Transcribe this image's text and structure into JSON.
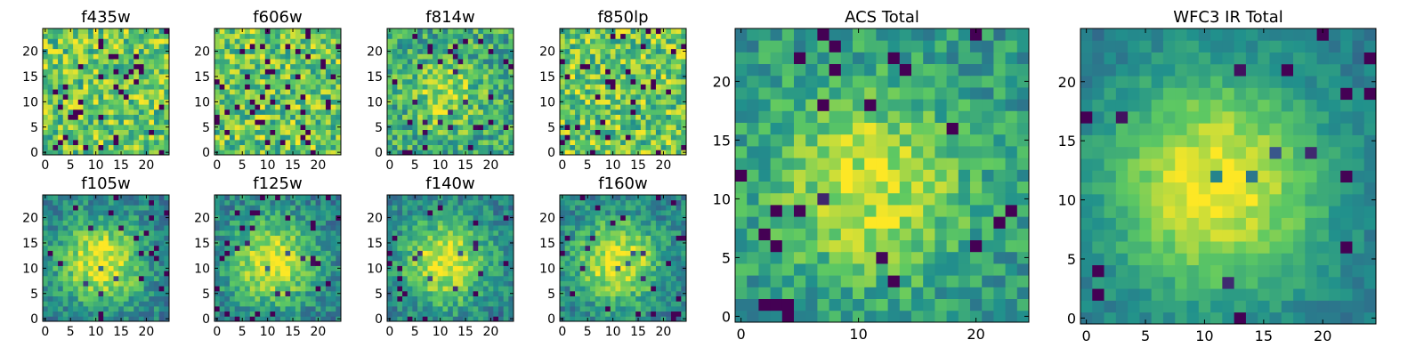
{
  "chart_data": [
    {
      "type": "heatmap",
      "title": "f435w",
      "grid": 25,
      "xticks": [
        0,
        5,
        10,
        15,
        20
      ],
      "yticks": [
        0,
        5,
        10,
        15,
        20
      ],
      "xlim": [
        0,
        25
      ],
      "ylim": [
        0,
        25
      ],
      "pattern": "noise",
      "seed": 11
    },
    {
      "type": "heatmap",
      "title": "f606w",
      "grid": 25,
      "xticks": [
        0,
        5,
        10,
        15,
        20
      ],
      "yticks": [
        0,
        5,
        10,
        15,
        20
      ],
      "xlim": [
        0,
        25
      ],
      "ylim": [
        0,
        25
      ],
      "pattern": "noise",
      "seed": 23
    },
    {
      "type": "heatmap",
      "title": "f814w",
      "grid": 25,
      "xticks": [
        0,
        5,
        10,
        15,
        20
      ],
      "yticks": [
        0,
        5,
        10,
        15,
        20
      ],
      "xlim": [
        0,
        25
      ],
      "ylim": [
        0,
        25
      ],
      "pattern": "noise-weak-center",
      "seed": 37
    },
    {
      "type": "heatmap",
      "title": "f850lp",
      "grid": 25,
      "xticks": [
        0,
        5,
        10,
        15,
        20
      ],
      "yticks": [
        0,
        5,
        10,
        15,
        20
      ],
      "xlim": [
        0,
        25
      ],
      "ylim": [
        0,
        25
      ],
      "pattern": "noise",
      "seed": 41
    },
    {
      "type": "heatmap",
      "title": "f105w",
      "grid": 25,
      "xticks": [
        0,
        5,
        10,
        15,
        20
      ],
      "yticks": [
        0,
        5,
        10,
        15,
        20
      ],
      "xlim": [
        0,
        25
      ],
      "ylim": [
        0,
        25
      ],
      "pattern": "blob",
      "seed": 53
    },
    {
      "type": "heatmap",
      "title": "f125w",
      "grid": 25,
      "xticks": [
        0,
        5,
        10,
        15,
        20
      ],
      "yticks": [
        0,
        5,
        10,
        15,
        20
      ],
      "xlim": [
        0,
        25
      ],
      "ylim": [
        0,
        25
      ],
      "pattern": "blob",
      "seed": 67
    },
    {
      "type": "heatmap",
      "title": "f140w",
      "grid": 25,
      "xticks": [
        0,
        5,
        10,
        15,
        20
      ],
      "yticks": [
        0,
        5,
        10,
        15,
        20
      ],
      "xlim": [
        0,
        25
      ],
      "ylim": [
        0,
        25
      ],
      "pattern": "blob",
      "seed": 79
    },
    {
      "type": "heatmap",
      "title": "f160w",
      "grid": 25,
      "xticks": [
        0,
        5,
        10,
        15,
        20
      ],
      "yticks": [
        0,
        5,
        10,
        15,
        20
      ],
      "xlim": [
        0,
        25
      ],
      "ylim": [
        0,
        25
      ],
      "pattern": "blob",
      "seed": 83
    },
    {
      "type": "heatmap",
      "title": "ACS Total",
      "grid": 25,
      "xticks": [
        0,
        10,
        20
      ],
      "yticks": [
        0,
        5,
        10,
        15,
        20
      ],
      "xlim": [
        0,
        25
      ],
      "ylim": [
        0,
        25
      ],
      "pattern": "blob-noisy",
      "seed": 97
    },
    {
      "type": "heatmap",
      "title": "WFC3 IR Total",
      "grid": 25,
      "xticks": [
        0,
        5,
        10,
        15,
        20
      ],
      "yticks": [
        0,
        5,
        10,
        15,
        20
      ],
      "xlim": [
        0,
        25
      ],
      "ylim": [
        0,
        25
      ],
      "pattern": "blob-smooth",
      "seed": 101
    }
  ],
  "colormap": [
    "#440154",
    "#3b528b",
    "#21918c",
    "#5ec962",
    "#fde725"
  ]
}
